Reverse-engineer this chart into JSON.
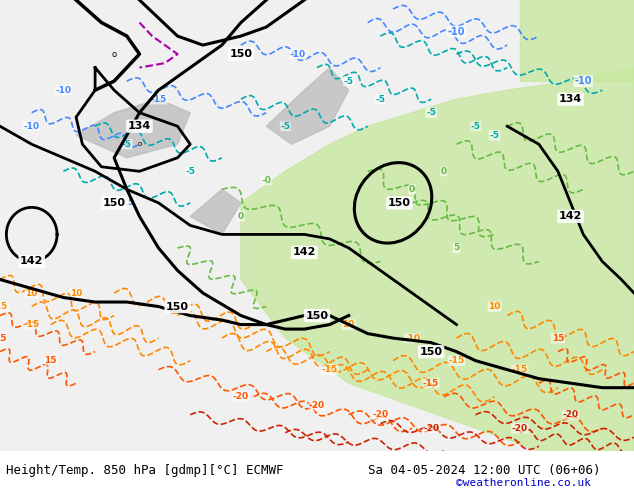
{
  "title_left": "Height/Temp. 850 hPa [gdmp][°C] ECMWF",
  "title_right": "Sa 04-05-2024 12:00 UTC (06+06)",
  "copyright": "©weatheronline.co.uk",
  "bg_color": "#ffffff",
  "bottom_text_color": "#000000",
  "copyright_color": "#0000cc",
  "footer_font_size": 9,
  "fig_width": 6.34,
  "fig_height": 4.9,
  "dpi": 100,
  "cyan_color": "#00aaaa",
  "blue_color": "#4488ff",
  "green_cont": "#66bb44",
  "orange_cont": "#ff8800",
  "dark_orange": "#ff5500",
  "red_cont": "#cc2200",
  "purple_cont": "#aa00aa"
}
